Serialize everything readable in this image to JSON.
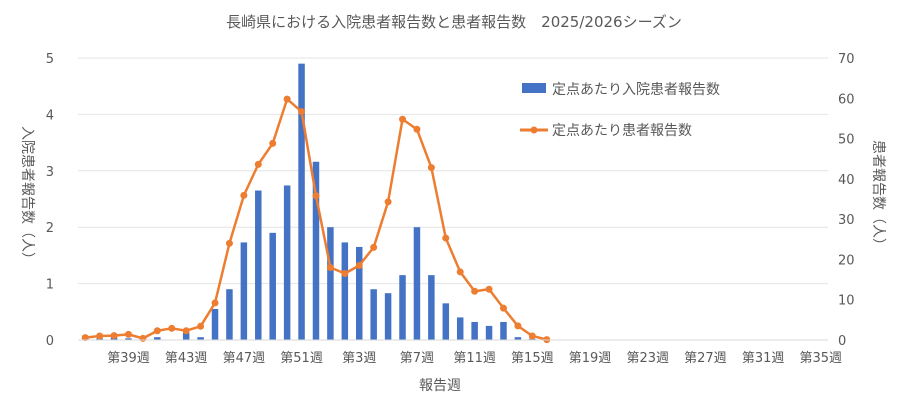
{
  "chart_data": {
    "type": "bar",
    "title": "長崎県における入院患者報告数と患者報告数　2025/2026シーズン",
    "xlabel": "報告週",
    "ylabel_left": "入院患者報告数（人）",
    "ylabel_right": "患者報告数（人）",
    "y_left_range": [
      0,
      5
    ],
    "y_left_ticks": [
      "0",
      "1",
      "2",
      "3",
      "4",
      "5"
    ],
    "y_right_range": [
      0,
      70
    ],
    "y_right_ticks": [
      "0",
      "10",
      "20",
      "30",
      "40",
      "50",
      "60",
      "70"
    ],
    "x_tick_labels": [
      "第39週",
      "第43週",
      "第47週",
      "第51週",
      "第3週",
      "第7週",
      "第11週",
      "第15週",
      "第19週",
      "第23週",
      "第27週",
      "第31週",
      "第35週"
    ],
    "legend_position": "top-right",
    "categories": [
      "36",
      "37",
      "38",
      "39",
      "40",
      "41",
      "42",
      "43",
      "44",
      "45",
      "46",
      "47",
      "48",
      "49",
      "50",
      "51",
      "52",
      "1",
      "2",
      "3",
      "4",
      "5",
      "6",
      "7",
      "8",
      "9",
      "10",
      "11",
      "12",
      "13",
      "14",
      "15",
      "16",
      "17",
      "18",
      "19",
      "20",
      "21",
      "22",
      "23",
      "24",
      "25",
      "26",
      "27",
      "28",
      "29",
      "30",
      "31",
      "32",
      "33",
      "34",
      "35"
    ],
    "series": [
      {
        "name": "定点あたり入院患者報告数",
        "kind": "bar",
        "axis": "left",
        "color": "#4472C4",
        "values": [
          0.02,
          0.03,
          0.05,
          0.03,
          0.0,
          0.05,
          0.0,
          0.13,
          0.05,
          0.55,
          0.9,
          1.73,
          2.65,
          1.9,
          2.74,
          4.9,
          3.16,
          2.0,
          1.73,
          1.65,
          0.9,
          0.83,
          1.15,
          2.0,
          1.15,
          0.65,
          0.4,
          0.32,
          0.25,
          0.32,
          0.05,
          0.02,
          0.0,
          null,
          null,
          null,
          null,
          null,
          null,
          null,
          null,
          null,
          null,
          null,
          null,
          null,
          null,
          null,
          null,
          null,
          null,
          null
        ]
      },
      {
        "name": "定点あたり患者報告数",
        "kind": "line",
        "axis": "right",
        "color": "#ED7D31",
        "values": [
          0.6,
          1.0,
          1.1,
          1.4,
          0.4,
          2.3,
          2.9,
          2.3,
          3.4,
          9.2,
          24.0,
          35.9,
          43.6,
          48.8,
          59.8,
          56.7,
          35.8,
          18.0,
          16.5,
          18.5,
          23.0,
          34.3,
          54.8,
          52.3,
          42.8,
          25.3,
          16.9,
          12.1,
          12.6,
          7.9,
          3.5,
          1.0,
          0.1,
          null,
          null,
          null,
          null,
          null,
          null,
          null,
          null,
          null,
          null,
          null,
          null,
          null,
          null,
          null,
          null,
          null,
          null,
          null
        ]
      }
    ]
  }
}
